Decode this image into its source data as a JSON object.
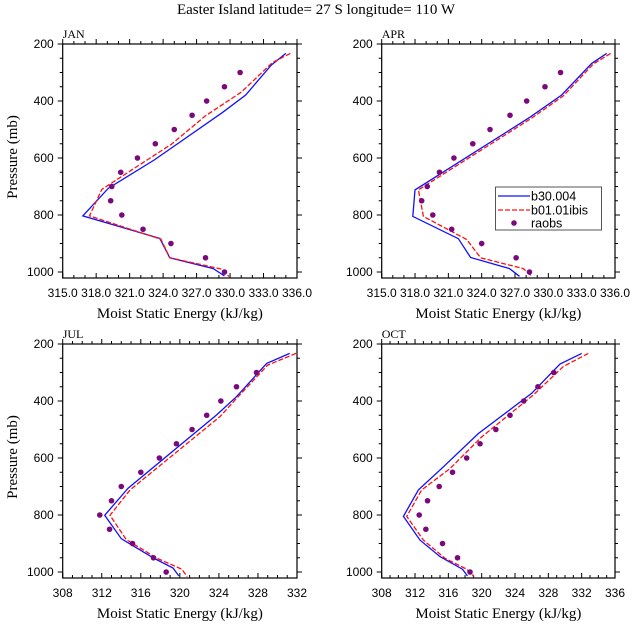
{
  "title": "Easter Island  latitude= 27 S longitude= 110 W",
  "legend": {
    "placement": "APR panel, lower-right",
    "entries": [
      "b30.004",
      "b01.01ibis",
      "raobs"
    ]
  },
  "colors": {
    "b30.004": "#1010ff",
    "b01.01ibis": "#ff1010",
    "raobs": "#7a0a7a"
  },
  "chart_data": [
    {
      "type": "line",
      "panel": "JAN",
      "xlabel": "Moist Static Energy (kJ/kg)",
      "ylabel": "Pressure (mb)",
      "xlim": [
        315,
        336
      ],
      "xticks": [
        315,
        318,
        321,
        324,
        327,
        330,
        333,
        336
      ],
      "xtick_labels": [
        "315.0",
        "318.0",
        "321.0",
        "324.0",
        "327.0",
        "330.0",
        "333.0",
        "336.0"
      ],
      "xminor": 1,
      "ylim": [
        200,
        1021
      ],
      "yreversed": true,
      "yticks": [
        200,
        400,
        600,
        800,
        1000
      ],
      "ytick_labels": [
        "200",
        "400",
        "600",
        "800",
        "1000"
      ],
      "show_ylabel": true,
      "series": [
        {
          "name": "b30.004",
          "style": "solid",
          "p": [
            233,
            274,
            379,
            441,
            607,
            706,
            803,
            882,
            950,
            988,
            1014
          ],
          "x": [
            335.0,
            333.7,
            331.4,
            329.3,
            323.2,
            319.1,
            316.8,
            323.7,
            324.6,
            328.5,
            329.5
          ]
        },
        {
          "name": "b01.01ibis",
          "style": "dashed",
          "p": [
            233,
            265,
            369,
            452,
            550,
            710,
            803,
            885,
            950,
            990,
            1016
          ],
          "x": [
            335.4,
            333.8,
            331.0,
            327.8,
            324.8,
            318.5,
            317.4,
            323.8,
            324.6,
            329.3,
            329.9
          ]
        },
        {
          "name": "raobs",
          "style": "dots",
          "p": [
            300,
            350,
            400,
            450,
            500,
            550,
            600,
            650,
            700,
            750,
            800,
            850,
            900,
            950,
            1000
          ],
          "x": [
            330.9,
            329.5,
            327.9,
            326.6,
            325.0,
            323.3,
            321.7,
            320.2,
            319.4,
            319.3,
            320.3,
            322.2,
            324.7,
            327.8,
            329.5
          ]
        }
      ]
    },
    {
      "type": "line",
      "panel": "APR",
      "xlabel": "Moist Static Energy (kJ/kg)",
      "ylabel": "",
      "xlim": [
        315,
        336
      ],
      "xticks": [
        315,
        318,
        321,
        324,
        327,
        330,
        333,
        336
      ],
      "xtick_labels": [
        "315.0",
        "318.0",
        "321.0",
        "324.0",
        "327.0",
        "330.0",
        "333.0",
        "336.0"
      ],
      "xminor": 1,
      "ylim": [
        200,
        1021
      ],
      "yreversed": true,
      "yticks": [
        200,
        400,
        600,
        800,
        1000
      ],
      "ytick_labels": [
        "200",
        "400",
        "600",
        "800",
        "1000"
      ],
      "show_ylabel": false,
      "series": [
        {
          "name": "b30.004",
          "style": "solid",
          "p": [
            233,
            268,
            379,
            457,
            712,
            805,
            883,
            949,
            988,
            1015
          ],
          "x": [
            335.25,
            333.9,
            331.2,
            328.35,
            318.0,
            317.8,
            321.9,
            323.0,
            326.5,
            327.4
          ]
        },
        {
          "name": "b01.01ibis",
          "style": "dashed",
          "p": [
            233,
            270,
            382,
            460,
            712,
            805,
            886,
            950,
            988,
            1014
          ],
          "x": [
            335.6,
            334.05,
            331.35,
            328.5,
            318.3,
            318.75,
            322.65,
            323.9,
            327.75,
            328.5
          ]
        },
        {
          "name": "raobs",
          "style": "dots",
          "p": [
            300,
            350,
            400,
            450,
            500,
            550,
            600,
            650,
            700,
            750,
            800,
            850,
            900,
            950,
            1000
          ],
          "x": [
            331.1,
            329.7,
            328.05,
            326.55,
            324.75,
            323.2,
            321.5,
            320.2,
            319.1,
            318.6,
            319.6,
            321.3,
            324.0,
            327.1,
            328.3
          ]
        }
      ]
    },
    {
      "type": "line",
      "panel": "JUL",
      "xlabel": "Moist Static Energy (kJ/kg)",
      "ylabel": "Pressure (mb)",
      "xlim": [
        308,
        332
      ],
      "xticks": [
        308,
        312,
        316,
        320,
        324,
        328,
        332
      ],
      "xtick_labels": [
        "308",
        "312",
        "316",
        "320",
        "324",
        "328",
        "332"
      ],
      "xminor": 1,
      "ylim": [
        200,
        1021
      ],
      "yreversed": true,
      "yticks": [
        200,
        400,
        600,
        800,
        1000
      ],
      "ytick_labels": [
        "200",
        "400",
        "600",
        "800",
        "1000"
      ],
      "show_ylabel": true,
      "series": [
        {
          "name": "b30.004",
          "style": "solid",
          "p": [
            233,
            268,
            385,
            449,
            706,
            801,
            883,
            951,
            986,
            1014
          ],
          "x": [
            331.25,
            328.9,
            325.8,
            323.75,
            314.7,
            312.3,
            314.0,
            317.3,
            319.3,
            319.9
          ]
        },
        {
          "name": "b01.01ibis",
          "style": "dashed",
          "p": [
            233,
            274,
            391,
            455,
            712,
            801,
            886,
            951,
            990,
            1016
          ],
          "x": [
            331.9,
            329.0,
            325.8,
            324.1,
            314.9,
            312.85,
            314.5,
            317.6,
            320.2,
            320.75
          ]
        },
        {
          "name": "raobs",
          "style": "dots",
          "p": [
            300,
            350,
            400,
            450,
            500,
            550,
            600,
            650,
            700,
            750,
            800,
            850,
            900,
            950,
            1000
          ],
          "x": [
            327.85,
            325.8,
            324.2,
            322.75,
            321.25,
            319.65,
            317.9,
            316.0,
            314.0,
            313.0,
            311.8,
            312.8,
            315.15,
            317.3,
            318.6
          ]
        }
      ]
    },
    {
      "type": "line",
      "panel": "OCT",
      "xlabel": "Moist Static Energy (kJ/kg)",
      "ylabel": "",
      "xlim": [
        308,
        336
      ],
      "xticks": [
        308,
        312,
        316,
        320,
        324,
        328,
        332,
        336
      ],
      "xtick_labels": [
        "308",
        "312",
        "316",
        "320",
        "324",
        "328",
        "332",
        "336"
      ],
      "xminor": 1,
      "ylim": [
        200,
        1021
      ],
      "yreversed": true,
      "yticks": [
        200,
        400,
        600,
        800,
        1000
      ],
      "ytick_labels": [
        "200",
        "400",
        "600",
        "800",
        "1000"
      ],
      "show_ylabel": false,
      "series": [
        {
          "name": "b30.004",
          "style": "solid",
          "p": [
            233,
            270,
            373,
            514,
            631,
            712,
            805,
            888,
            946,
            990,
            1014
          ],
          "x": [
            332.0,
            329.4,
            326.0,
            319.6,
            315.4,
            312.4,
            310.6,
            312.6,
            315.0,
            317.7,
            318.3
          ]
        },
        {
          "name": "b01.01ibis",
          "style": "dashed",
          "p": [
            233,
            279,
            379,
            526,
            637,
            712,
            805,
            888,
            952,
            990,
            1016
          ],
          "x": [
            332.8,
            329.8,
            326.2,
            320.0,
            316.2,
            312.8,
            311.0,
            313.0,
            315.6,
            318.2,
            319.1
          ]
        },
        {
          "name": "raobs",
          "style": "dots",
          "p": [
            300,
            350,
            400,
            450,
            500,
            550,
            600,
            650,
            700,
            750,
            800,
            850,
            900,
            950,
            1000
          ],
          "x": [
            328.65,
            326.75,
            325.05,
            323.4,
            321.7,
            319.8,
            318.2,
            316.5,
            314.9,
            313.5,
            312.5,
            313.3,
            315.3,
            317.1,
            318.6
          ]
        }
      ]
    }
  ]
}
